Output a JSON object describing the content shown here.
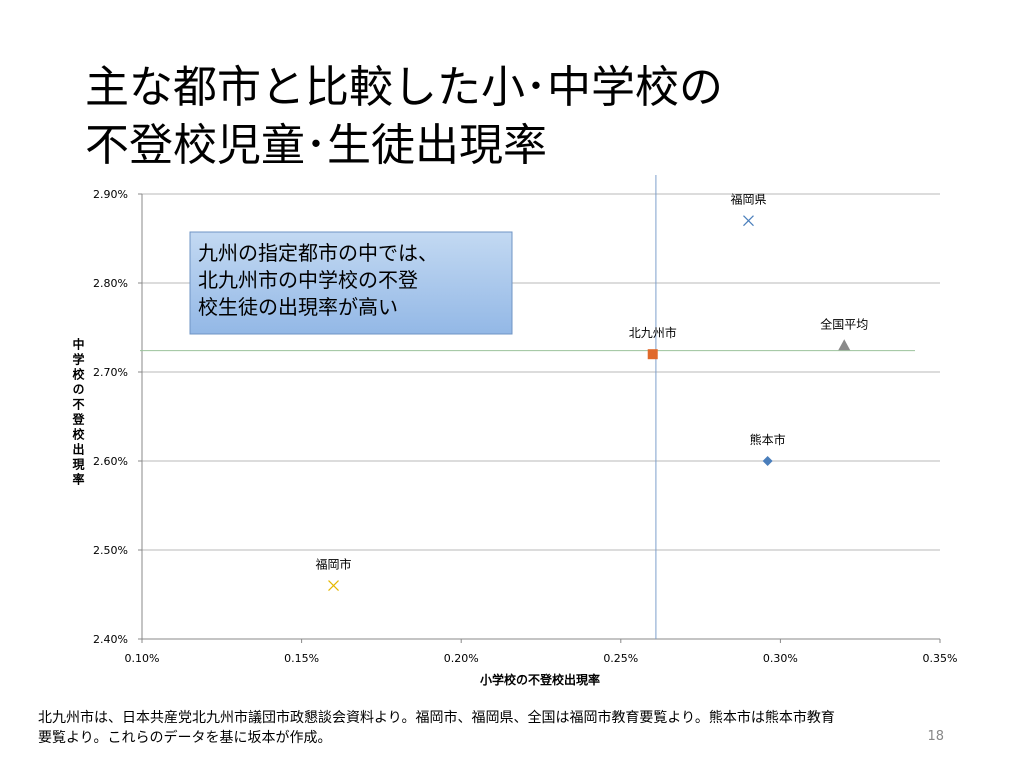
{
  "chart_data": {
    "type": "scatter",
    "title": [
      "主な都市と比較した小･中学校の",
      "不登校児童･生徒出現率"
    ],
    "x_label": "小学校の不登校出現率",
    "y_label": "中学校の不登校出現率",
    "xlim": [
      0.1,
      0.35
    ],
    "ylim": [
      2.4,
      2.9
    ],
    "xticks": [
      {
        "value": 0.1,
        "label": "0.10%"
      },
      {
        "value": 0.15,
        "label": "0.15%"
      },
      {
        "value": 0.2,
        "label": "0.20%"
      },
      {
        "value": 0.25,
        "label": "0.25%"
      },
      {
        "value": 0.3,
        "label": "0.30%"
      },
      {
        "value": 0.35,
        "label": "0.35%"
      }
    ],
    "yticks": [
      {
        "value": 2.4,
        "label": "2.40%"
      },
      {
        "value": 2.5,
        "label": "2.50%"
      },
      {
        "value": 2.6,
        "label": "2.60%"
      },
      {
        "value": 2.7,
        "label": "2.70%"
      },
      {
        "value": 2.8,
        "label": "2.80%"
      },
      {
        "value": 2.9,
        "label": "2.90%"
      }
    ],
    "grid": true,
    "reference_lines": {
      "x": 0.261,
      "y": 2.724
    },
    "series": [
      {
        "name": "福岡県",
        "color": "#4a7ebb",
        "marker": "x",
        "x": [
          0.29
        ],
        "values": [
          2.87
        ]
      },
      {
        "name": "北九州市",
        "color": "#e0692a",
        "marker": "square",
        "x": [
          0.26
        ],
        "values": [
          2.72
        ]
      },
      {
        "name": "全国平均",
        "color": "#8a8a8a",
        "marker": "triangle",
        "x": [
          0.32
        ],
        "values": [
          2.73
        ]
      },
      {
        "name": "熊本市",
        "color": "#4a7ebb",
        "marker": "diamond",
        "x": [
          0.296
        ],
        "values": [
          2.6
        ]
      },
      {
        "name": "福岡市",
        "color": "#e6b800",
        "marker": "x",
        "x": [
          0.16
        ],
        "values": [
          2.46
        ]
      }
    ],
    "annotation": [
      "九州の指定都市の中では、",
      "北九州市の中学校の不登",
      "校生徒の出現率が高い"
    ]
  },
  "footnote": [
    "北九州市は、日本共産党北九州市議団市政懇談会資料より。福岡市、福岡県、全国は福岡市教育要覧より。熊本市は熊本市教育",
    "要覧より。これらのデータを基に坂本が作成。"
  ],
  "page_number": "18"
}
